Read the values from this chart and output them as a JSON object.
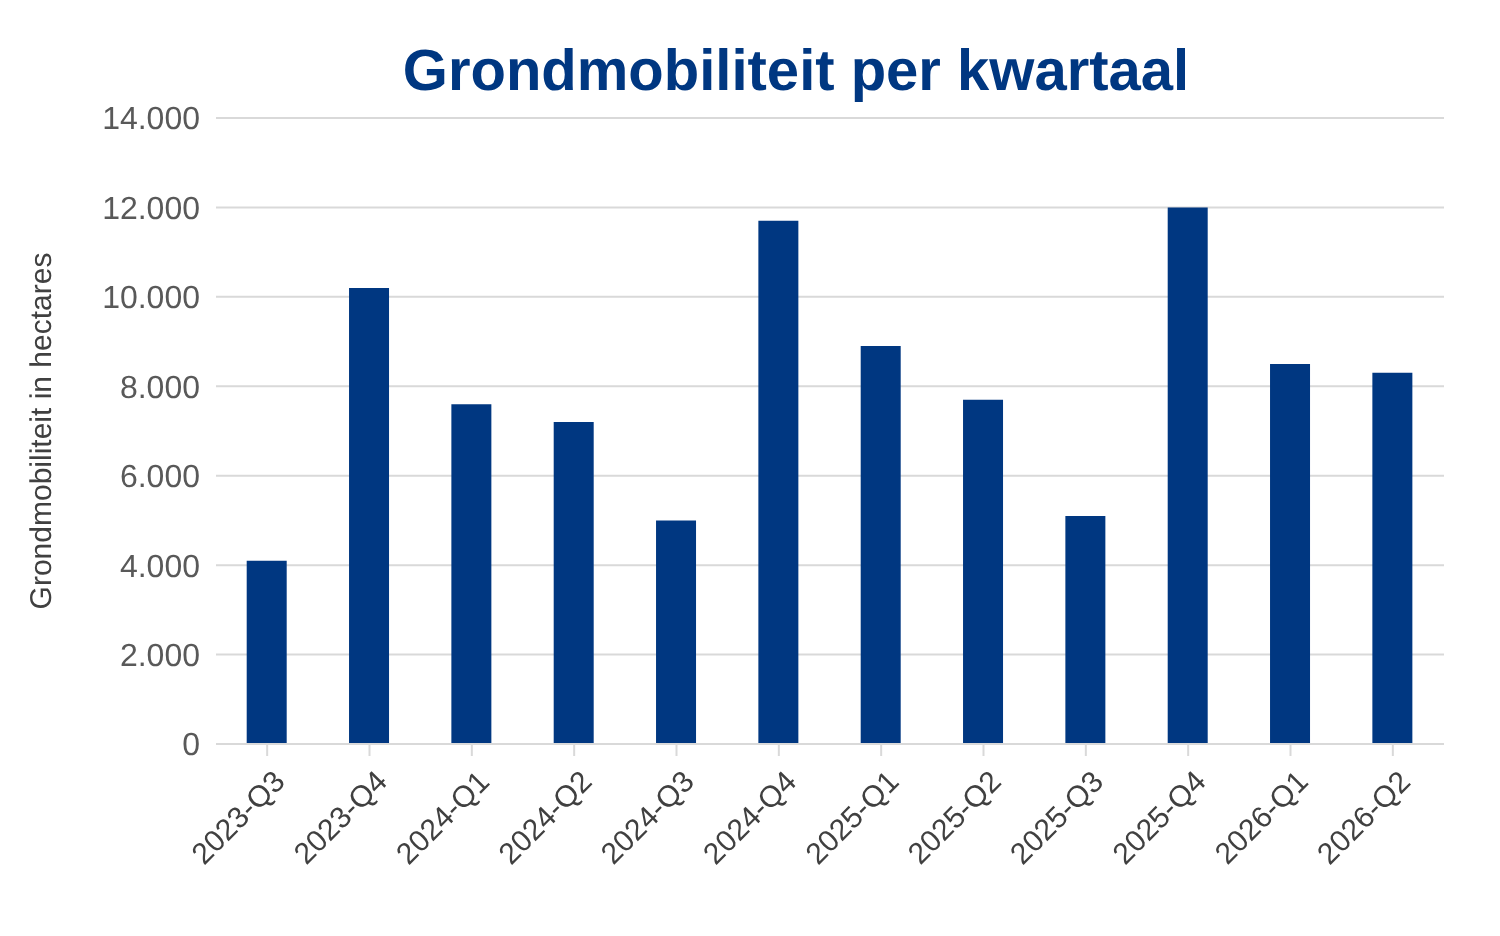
{
  "chart_data": {
    "type": "bar",
    "title": "Grondmobiliteit per kwartaal",
    "ylabel": "Grondmobiliteit in hectares",
    "categories": [
      "2023-Q3",
      "2023-Q4",
      "2024-Q1",
      "2024-Q2",
      "2024-Q3",
      "2024-Q4",
      "2025-Q1",
      "2025-Q2",
      "2025-Q3",
      "2025-Q4",
      "2026-Q1",
      "2026-Q2"
    ],
    "values": [
      4100,
      10200,
      7600,
      7200,
      5000,
      11700,
      8900,
      7700,
      5100,
      12000,
      8500,
      8300
    ],
    "color": "#003781",
    "ylim": [
      0,
      14000
    ],
    "yticks": [
      0,
      {
        "value": 2000,
        "label": "2.000"
      },
      {
        "value": 4000,
        "label": "4.000"
      },
      {
        "value": 6000,
        "label": "6.000"
      },
      {
        "value": 8000,
        "label": "8.000"
      },
      {
        "value": 10000,
        "label": "10.000"
      },
      {
        "value": 12000,
        "label": "12.000"
      },
      {
        "value": 14000,
        "label": "14.000"
      }
    ],
    "grid": "y",
    "legend": false
  }
}
